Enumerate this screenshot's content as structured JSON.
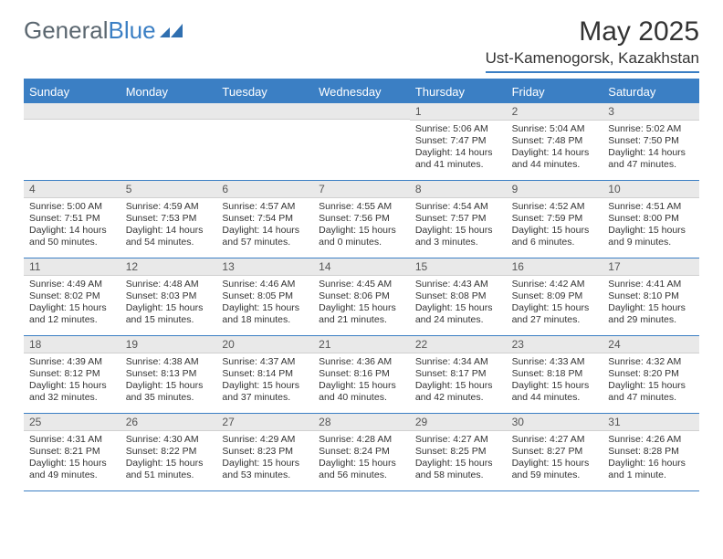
{
  "logo": {
    "text1": "General",
    "text2": "Blue",
    "color1": "#5b6770",
    "color2": "#3b7fc4"
  },
  "title": "May 2025",
  "location": "Ust-Kamenogorsk, Kazakhstan",
  "accent_color": "#3b7fc4",
  "header_bg": "#3b7fc4",
  "date_bar_bg": "#e9e9e9",
  "day_names": [
    "Sunday",
    "Monday",
    "Tuesday",
    "Wednesday",
    "Thursday",
    "Friday",
    "Saturday"
  ],
  "weeks": [
    [
      {
        "date": "",
        "sunrise": "",
        "sunset": "",
        "daylight": ""
      },
      {
        "date": "",
        "sunrise": "",
        "sunset": "",
        "daylight": ""
      },
      {
        "date": "",
        "sunrise": "",
        "sunset": "",
        "daylight": ""
      },
      {
        "date": "",
        "sunrise": "",
        "sunset": "",
        "daylight": ""
      },
      {
        "date": "1",
        "sunrise": "Sunrise: 5:06 AM",
        "sunset": "Sunset: 7:47 PM",
        "daylight": "Daylight: 14 hours and 41 minutes."
      },
      {
        "date": "2",
        "sunrise": "Sunrise: 5:04 AM",
        "sunset": "Sunset: 7:48 PM",
        "daylight": "Daylight: 14 hours and 44 minutes."
      },
      {
        "date": "3",
        "sunrise": "Sunrise: 5:02 AM",
        "sunset": "Sunset: 7:50 PM",
        "daylight": "Daylight: 14 hours and 47 minutes."
      }
    ],
    [
      {
        "date": "4",
        "sunrise": "Sunrise: 5:00 AM",
        "sunset": "Sunset: 7:51 PM",
        "daylight": "Daylight: 14 hours and 50 minutes."
      },
      {
        "date": "5",
        "sunrise": "Sunrise: 4:59 AM",
        "sunset": "Sunset: 7:53 PM",
        "daylight": "Daylight: 14 hours and 54 minutes."
      },
      {
        "date": "6",
        "sunrise": "Sunrise: 4:57 AM",
        "sunset": "Sunset: 7:54 PM",
        "daylight": "Daylight: 14 hours and 57 minutes."
      },
      {
        "date": "7",
        "sunrise": "Sunrise: 4:55 AM",
        "sunset": "Sunset: 7:56 PM",
        "daylight": "Daylight: 15 hours and 0 minutes."
      },
      {
        "date": "8",
        "sunrise": "Sunrise: 4:54 AM",
        "sunset": "Sunset: 7:57 PM",
        "daylight": "Daylight: 15 hours and 3 minutes."
      },
      {
        "date": "9",
        "sunrise": "Sunrise: 4:52 AM",
        "sunset": "Sunset: 7:59 PM",
        "daylight": "Daylight: 15 hours and 6 minutes."
      },
      {
        "date": "10",
        "sunrise": "Sunrise: 4:51 AM",
        "sunset": "Sunset: 8:00 PM",
        "daylight": "Daylight: 15 hours and 9 minutes."
      }
    ],
    [
      {
        "date": "11",
        "sunrise": "Sunrise: 4:49 AM",
        "sunset": "Sunset: 8:02 PM",
        "daylight": "Daylight: 15 hours and 12 minutes."
      },
      {
        "date": "12",
        "sunrise": "Sunrise: 4:48 AM",
        "sunset": "Sunset: 8:03 PM",
        "daylight": "Daylight: 15 hours and 15 minutes."
      },
      {
        "date": "13",
        "sunrise": "Sunrise: 4:46 AM",
        "sunset": "Sunset: 8:05 PM",
        "daylight": "Daylight: 15 hours and 18 minutes."
      },
      {
        "date": "14",
        "sunrise": "Sunrise: 4:45 AM",
        "sunset": "Sunset: 8:06 PM",
        "daylight": "Daylight: 15 hours and 21 minutes."
      },
      {
        "date": "15",
        "sunrise": "Sunrise: 4:43 AM",
        "sunset": "Sunset: 8:08 PM",
        "daylight": "Daylight: 15 hours and 24 minutes."
      },
      {
        "date": "16",
        "sunrise": "Sunrise: 4:42 AM",
        "sunset": "Sunset: 8:09 PM",
        "daylight": "Daylight: 15 hours and 27 minutes."
      },
      {
        "date": "17",
        "sunrise": "Sunrise: 4:41 AM",
        "sunset": "Sunset: 8:10 PM",
        "daylight": "Daylight: 15 hours and 29 minutes."
      }
    ],
    [
      {
        "date": "18",
        "sunrise": "Sunrise: 4:39 AM",
        "sunset": "Sunset: 8:12 PM",
        "daylight": "Daylight: 15 hours and 32 minutes."
      },
      {
        "date": "19",
        "sunrise": "Sunrise: 4:38 AM",
        "sunset": "Sunset: 8:13 PM",
        "daylight": "Daylight: 15 hours and 35 minutes."
      },
      {
        "date": "20",
        "sunrise": "Sunrise: 4:37 AM",
        "sunset": "Sunset: 8:14 PM",
        "daylight": "Daylight: 15 hours and 37 minutes."
      },
      {
        "date": "21",
        "sunrise": "Sunrise: 4:36 AM",
        "sunset": "Sunset: 8:16 PM",
        "daylight": "Daylight: 15 hours and 40 minutes."
      },
      {
        "date": "22",
        "sunrise": "Sunrise: 4:34 AM",
        "sunset": "Sunset: 8:17 PM",
        "daylight": "Daylight: 15 hours and 42 minutes."
      },
      {
        "date": "23",
        "sunrise": "Sunrise: 4:33 AM",
        "sunset": "Sunset: 8:18 PM",
        "daylight": "Daylight: 15 hours and 44 minutes."
      },
      {
        "date": "24",
        "sunrise": "Sunrise: 4:32 AM",
        "sunset": "Sunset: 8:20 PM",
        "daylight": "Daylight: 15 hours and 47 minutes."
      }
    ],
    [
      {
        "date": "25",
        "sunrise": "Sunrise: 4:31 AM",
        "sunset": "Sunset: 8:21 PM",
        "daylight": "Daylight: 15 hours and 49 minutes."
      },
      {
        "date": "26",
        "sunrise": "Sunrise: 4:30 AM",
        "sunset": "Sunset: 8:22 PM",
        "daylight": "Daylight: 15 hours and 51 minutes."
      },
      {
        "date": "27",
        "sunrise": "Sunrise: 4:29 AM",
        "sunset": "Sunset: 8:23 PM",
        "daylight": "Daylight: 15 hours and 53 minutes."
      },
      {
        "date": "28",
        "sunrise": "Sunrise: 4:28 AM",
        "sunset": "Sunset: 8:24 PM",
        "daylight": "Daylight: 15 hours and 56 minutes."
      },
      {
        "date": "29",
        "sunrise": "Sunrise: 4:27 AM",
        "sunset": "Sunset: 8:25 PM",
        "daylight": "Daylight: 15 hours and 58 minutes."
      },
      {
        "date": "30",
        "sunrise": "Sunrise: 4:27 AM",
        "sunset": "Sunset: 8:27 PM",
        "daylight": "Daylight: 15 hours and 59 minutes."
      },
      {
        "date": "31",
        "sunrise": "Sunrise: 4:26 AM",
        "sunset": "Sunset: 8:28 PM",
        "daylight": "Daylight: 16 hours and 1 minute."
      }
    ]
  ]
}
